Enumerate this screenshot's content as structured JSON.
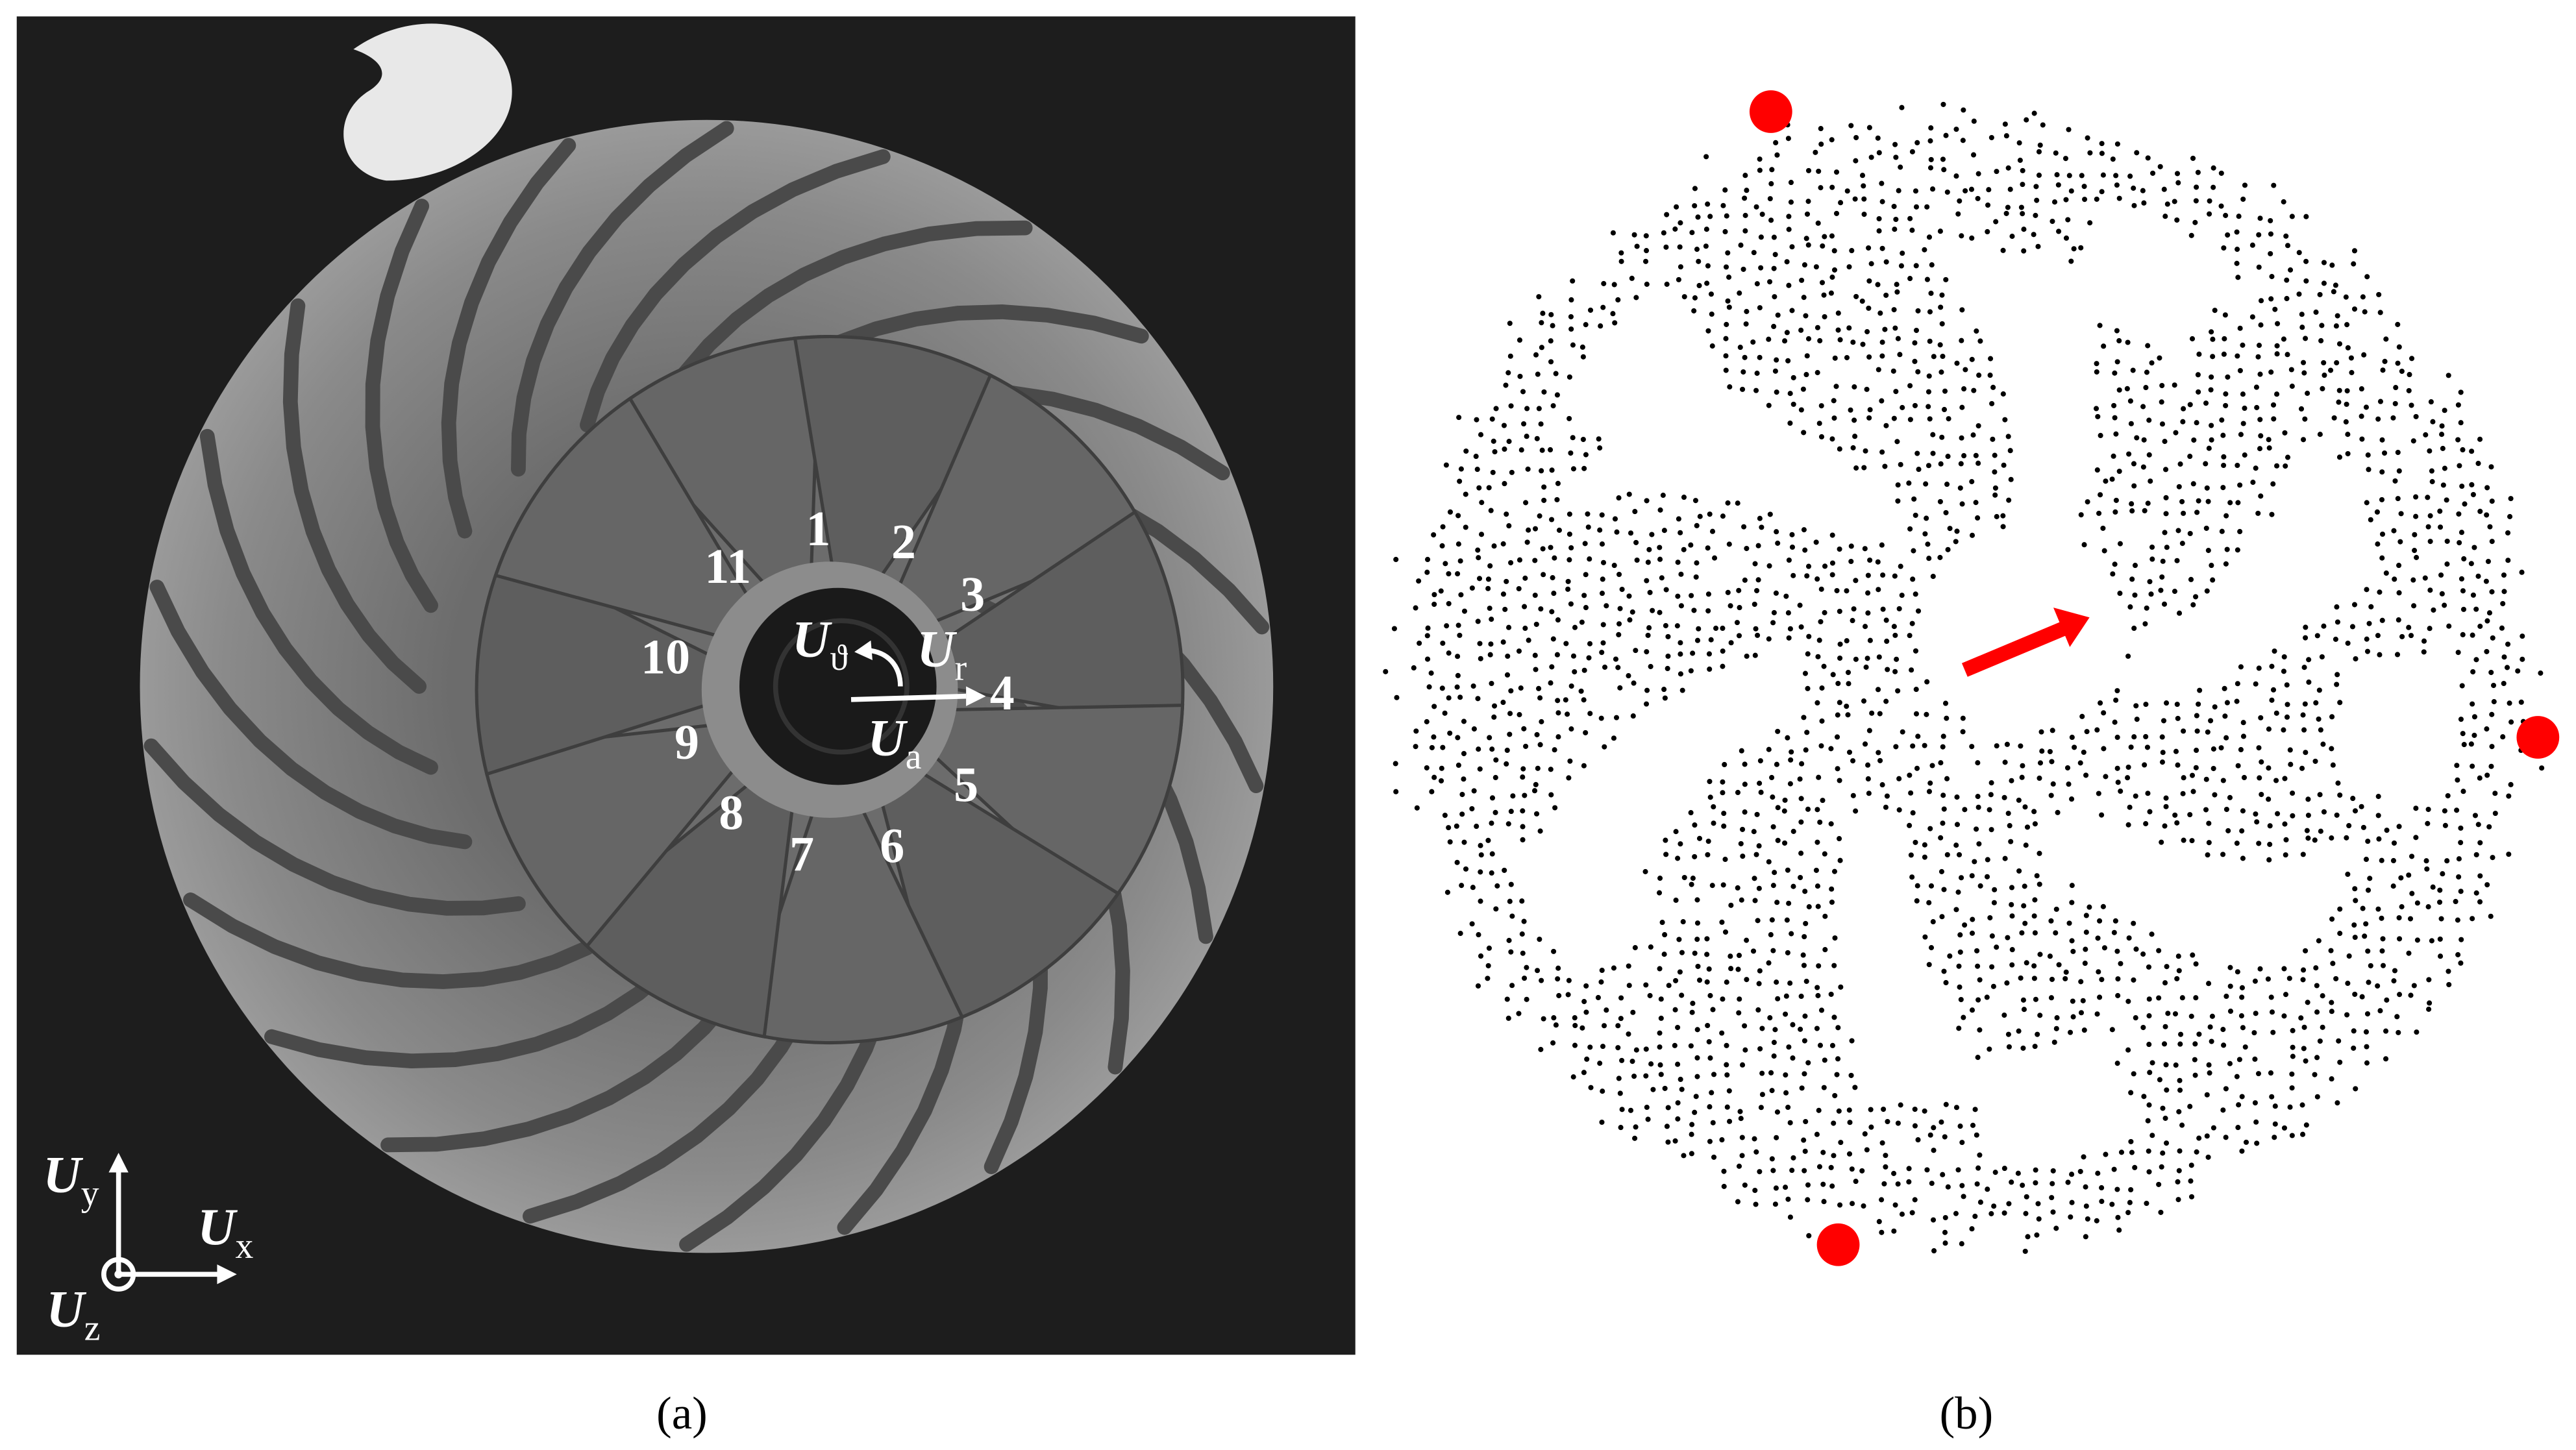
{
  "panel_a": {
    "blade_numbers": [
      "1",
      "2",
      "3",
      "4",
      "5",
      "6",
      "7",
      "8",
      "9",
      "10",
      "11"
    ],
    "rotor_axes": [
      {
        "symbol": "U",
        "subscript": "ϑ"
      },
      {
        "symbol": "U",
        "subscript": "r"
      },
      {
        "symbol": "U",
        "subscript": "a"
      }
    ],
    "global_axes": [
      {
        "symbol": "U",
        "subscript": "y"
      },
      {
        "symbol": "U",
        "subscript": "x"
      },
      {
        "symbol": "U",
        "subscript": "z"
      }
    ],
    "caption": "(a)"
  },
  "panel_b": {
    "caption": "(b)"
  }
}
